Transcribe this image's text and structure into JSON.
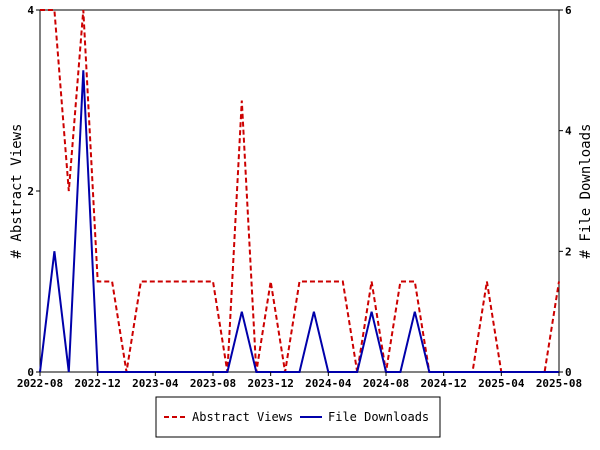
{
  "chart_data": {
    "type": "line",
    "x": [
      "2022-08",
      "2022-09",
      "2022-10",
      "2022-11",
      "2022-12",
      "2023-01",
      "2023-02",
      "2023-03",
      "2023-04",
      "2023-05",
      "2023-06",
      "2023-07",
      "2023-08",
      "2023-09",
      "2023-10",
      "2023-11",
      "2023-12",
      "2024-01",
      "2024-02",
      "2024-03",
      "2024-04",
      "2024-05",
      "2024-06",
      "2024-07",
      "2024-08",
      "2024-09",
      "2024-10",
      "2024-11",
      "2024-12",
      "2025-01",
      "2025-02",
      "2025-03",
      "2025-04",
      "2025-05",
      "2025-06",
      "2025-07",
      "2025-08"
    ],
    "x_tick_labels": [
      "2022-08",
      "2022-12",
      "2023-04",
      "2023-08",
      "2023-12",
      "2024-04",
      "2024-08",
      "2024-12",
      "2025-04",
      "2025-08"
    ],
    "series": [
      {
        "name": "Abstract Views",
        "axis": "left",
        "color": "#cc0000",
        "dash": "dashed",
        "values": [
          4,
          4,
          2,
          4,
          1,
          1,
          0,
          1,
          1,
          1,
          1,
          1,
          1,
          0,
          3,
          0,
          1,
          0,
          1,
          1,
          1,
          1,
          0,
          1,
          0,
          1,
          1,
          0,
          0,
          0,
          0,
          1,
          0,
          0,
          0,
          0,
          1
        ]
      },
      {
        "name": "File Downloads",
        "axis": "right",
        "color": "#0000aa",
        "dash": "solid",
        "values": [
          0,
          2,
          0,
          5,
          0,
          0,
          0,
          0,
          0,
          0,
          0,
          0,
          0,
          0,
          1,
          0,
          0,
          0,
          0,
          1,
          0,
          0,
          0,
          1,
          0,
          0,
          1,
          0,
          0,
          0,
          0,
          0,
          0,
          0,
          0,
          0,
          0
        ]
      }
    ],
    "y_left": {
      "label": "# Abstract Views",
      "ylim": [
        0,
        4
      ],
      "ticks": [
        "0",
        "2",
        "4"
      ]
    },
    "y_right": {
      "label": "# File Downloads",
      "ylim": [
        0,
        6
      ],
      "ticks": [
        "0",
        "2",
        "4",
        "6"
      ]
    },
    "grid": false,
    "legend_position": "bottom"
  }
}
